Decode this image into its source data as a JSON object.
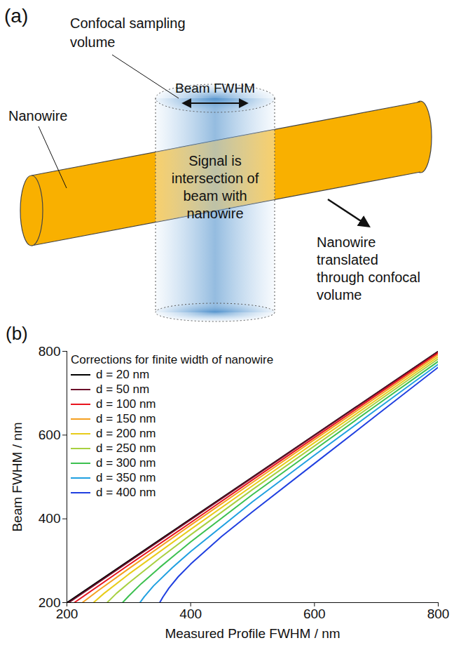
{
  "diagram": {
    "panel": "(a)",
    "sampling_volume": [
      "Confocal sampling",
      "volume"
    ],
    "beam_fwhm": "Beam FWHM",
    "nanowire": "Nanowire",
    "signal": [
      "Signal is",
      "intersection of",
      "beam with",
      "nanowire"
    ],
    "translation": [
      "Nanowire",
      "translated",
      "through confocal",
      "volume"
    ]
  },
  "chart_data": {
    "type": "line",
    "panel": "(b)",
    "title": "Corrections for finite width of nanowire",
    "x_label": "Measured Profile FWHM / nm",
    "y_label": "Beam FWHM / nm",
    "xlim": [
      200,
      800
    ],
    "ylim": [
      200,
      800
    ],
    "xticks": [
      200,
      400,
      600,
      800
    ],
    "yticks": [
      200,
      400,
      600,
      800
    ],
    "legend": "top-left",
    "series": [
      {
        "name": "d = 20 nm",
        "color": "#000000",
        "x": [
          200,
          500,
          800
        ],
        "values": [
          200,
          500,
          800
        ]
      },
      {
        "name": "d = 50 nm",
        "color": "#6b0f2a",
        "x": [
          203,
          400,
          600,
          800
        ],
        "values": [
          200,
          398,
          599,
          799
        ]
      },
      {
        "name": "d = 100 nm",
        "color": "#e8141e",
        "x": [
          212,
          300,
          400,
          500,
          600,
          700,
          800
        ],
        "values": [
          200,
          290,
          391,
          493,
          594,
          695,
          796
        ]
      },
      {
        "name": "d = 150 nm",
        "color": "#f5a020",
        "x": [
          225,
          250,
          300,
          400,
          500,
          600,
          700,
          800
        ],
        "values": [
          200,
          228,
          281,
          385,
          487,
          589,
          690,
          792
        ]
      },
      {
        "name": "d = 200 nm",
        "color": "#e8cc1a",
        "x": [
          243,
          260,
          300,
          400,
          500,
          600,
          700,
          800
        ],
        "values": [
          200,
          222,
          268,
          375,
          479,
          582,
          684,
          787
        ]
      },
      {
        "name": "d = 250 nm",
        "color": "#a8d040",
        "x": [
          265,
          280,
          300,
          350,
          400,
          500,
          600,
          700,
          800
        ],
        "values": [
          200,
          222,
          247,
          306,
          362,
          470,
          574,
          678,
          782
        ]
      },
      {
        "name": "d = 300 nm",
        "color": "#3cc050",
        "x": [
          290,
          300,
          320,
          350,
          400,
          500,
          600,
          700,
          800
        ],
        "values": [
          200,
          216,
          245,
          284,
          345,
          458,
          565,
          671,
          776
        ]
      },
      {
        "name": "d = 350 nm",
        "color": "#20a0e0",
        "x": [
          318,
          325,
          340,
          370,
          400,
          500,
          600,
          700,
          800
        ],
        "values": [
          200,
          214,
          240,
          283,
          322,
          441,
          552,
          661,
          769
        ]
      },
      {
        "name": "d = 400 nm",
        "color": "#2040e0",
        "x": [
          350,
          355,
          365,
          380,
          400,
          450,
          500,
          600,
          700,
          800
        ],
        "values": [
          200,
          213,
          235,
          262,
          292,
          358,
          417,
          532,
          647,
          762
        ]
      }
    ]
  }
}
